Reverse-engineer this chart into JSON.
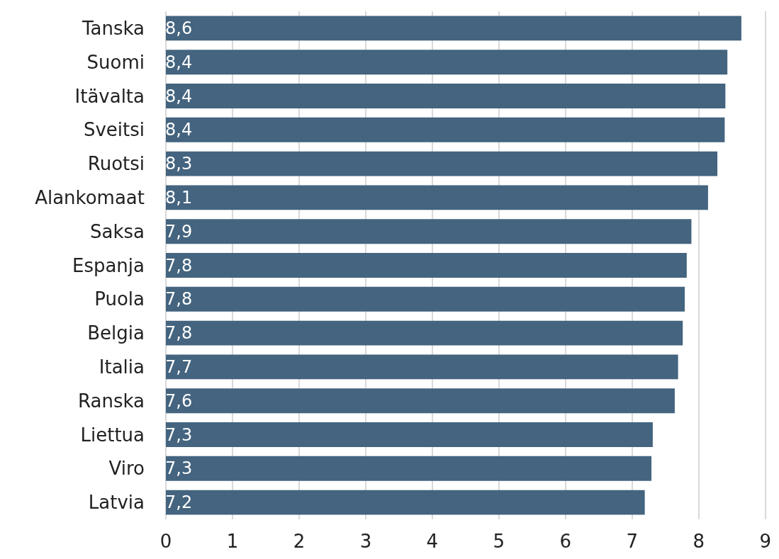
{
  "chart_data": {
    "type": "bar",
    "orientation": "horizontal",
    "categories": [
      "Tanska",
      "Suomi",
      "Itävalta",
      "Sveitsi",
      "Ruotsi",
      "Alankomaat",
      "Saksa",
      "Espanja",
      "Puola",
      "Belgia",
      "Italia",
      "Ranska",
      "Liettua",
      "Viro",
      "Latvia"
    ],
    "values": [
      8.64,
      8.43,
      8.4,
      8.39,
      8.28,
      8.14,
      7.89,
      7.82,
      7.79,
      7.76,
      7.69,
      7.64,
      7.31,
      7.29,
      7.19
    ],
    "value_labels": [
      "8,6",
      "8,4",
      "8,4",
      "8,4",
      "8,3",
      "8,1",
      "7,9",
      "7,8",
      "7,8",
      "7,8",
      "7,7",
      "7,6",
      "7,3",
      "7,3",
      "7,2"
    ],
    "color": "#44647f",
    "xlim": [
      0,
      9
    ],
    "xticks": [
      0,
      1,
      2,
      3,
      4,
      5,
      6,
      7,
      8,
      9
    ],
    "grid": "x"
  }
}
